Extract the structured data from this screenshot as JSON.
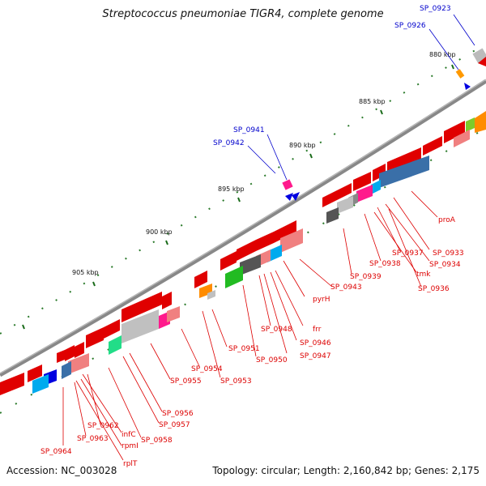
{
  "title": "Streptococcus pneumoniae TIGR4, complete genome",
  "footer": {
    "accession": "Accession: NC_003028",
    "summary": "Topology: circular; Length: 2,160,842 bp; Genes: 2,175"
  },
  "ticks": [
    "880 kbp",
    "885 kbp",
    "890 kbp",
    "895 kbp",
    "900 kbp",
    "905 kbp"
  ],
  "outer_genes": [
    "SP_0923",
    "SP_0926",
    "SP_0941",
    "SP_0942"
  ],
  "inner_genes": [
    "proA",
    "SP_0933",
    "SP_0934",
    "SP_0937",
    "tmk",
    "SP_0938",
    "SP_0936",
    "SP_0939",
    "SP_0943",
    "pyrH",
    "SP_0948",
    "frr",
    "SP_0946",
    "SP_0947",
    "SP_0950",
    "SP_0951",
    "SP_0953",
    "SP_0954",
    "SP_0955",
    "SP_0956",
    "SP_0957",
    "SP_0958",
    "SP_0962",
    "infC",
    "SP_0963",
    "rpmI",
    "SP_0964",
    "rplT"
  ],
  "colors": {
    "backbone": "#808080",
    "outer_label": "#0000cc",
    "inner_label": "#dd0000",
    "tick": "#006600"
  }
}
